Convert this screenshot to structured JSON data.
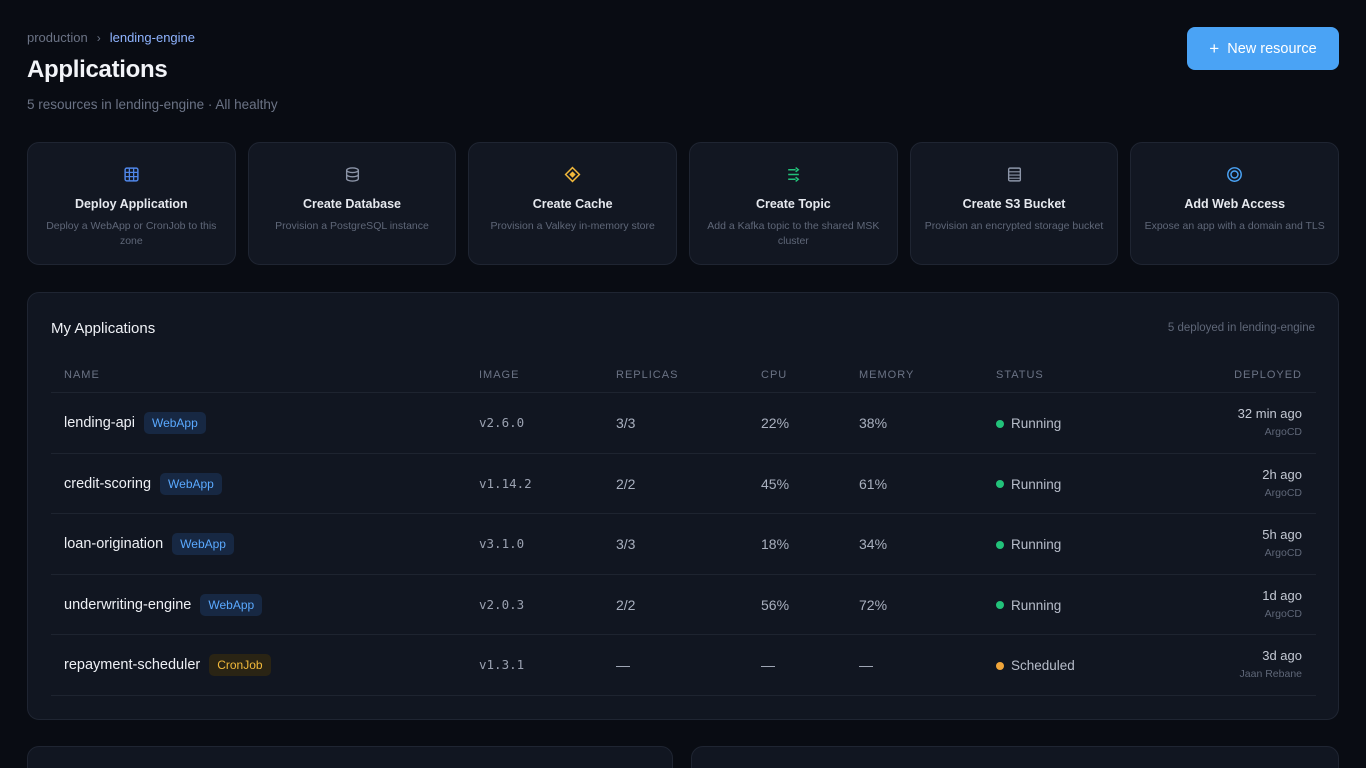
{
  "breadcrumb": {
    "root": "production",
    "separator": "›",
    "current": "lending-engine"
  },
  "page": {
    "title": "Applications",
    "subtitle": "5 resources in lending-engine · All healthy"
  },
  "new_resource": {
    "icon": "plus-icon",
    "plus": "+",
    "label": "New resource"
  },
  "actions": [
    {
      "icon": "grid-icon",
      "color": "#4f86e8",
      "title": "Deploy Application",
      "desc": "Deploy a WebApp or CronJob to this zone"
    },
    {
      "icon": "database-icon",
      "color": "#8c95a8",
      "title": "Create Database",
      "desc": "Provision a PostgreSQL instance"
    },
    {
      "icon": "diamond-icon",
      "color": "#f2b93b",
      "title": "Create Cache",
      "desc": "Provision a Valkey in-memory store"
    },
    {
      "icon": "topic-icon",
      "color": "#22c27a",
      "title": "Create Topic",
      "desc": "Add a Kafka topic to the shared MSK cluster"
    },
    {
      "icon": "bucket-icon",
      "color": "#8c95a8",
      "title": "Create S3 Bucket",
      "desc": "Provision an encrypted storage bucket"
    },
    {
      "icon": "globe-icon",
      "color": "#4aa3f5",
      "title": "Add Web Access",
      "desc": "Expose an app with a domain and TLS"
    }
  ],
  "apps_panel": {
    "title": "My Applications",
    "meta": "5 deployed in lending-engine",
    "columns": [
      "NAME",
      "IMAGE",
      "REPLICAS",
      "CPU",
      "MEMORY",
      "STATUS",
      "DEPLOYED"
    ],
    "rows": [
      {
        "name": "lending-api",
        "type": "WebApp",
        "image": "v2.6.0",
        "replicas": "3/3",
        "cpu": "22%",
        "memory": "38%",
        "status": "Running",
        "deployed": "32 min ago",
        "by": "ArgoCD"
      },
      {
        "name": "credit-scoring",
        "type": "WebApp",
        "image": "v1.14.2",
        "replicas": "2/2",
        "cpu": "45%",
        "memory": "61%",
        "status": "Running",
        "deployed": "2h ago",
        "by": "ArgoCD"
      },
      {
        "name": "loan-origination",
        "type": "WebApp",
        "image": "v3.1.0",
        "replicas": "3/3",
        "cpu": "18%",
        "memory": "34%",
        "status": "Running",
        "deployed": "5h ago",
        "by": "ArgoCD"
      },
      {
        "name": "underwriting-engine",
        "type": "WebApp",
        "image": "v2.0.3",
        "replicas": "2/2",
        "cpu": "56%",
        "memory": "72%",
        "status": "Running",
        "deployed": "1d ago",
        "by": "ArgoCD"
      },
      {
        "name": "repayment-scheduler",
        "type": "CronJob",
        "image": "v1.3.1",
        "replicas": "—",
        "cpu": "—",
        "memory": "—",
        "status": "Scheduled",
        "deployed": "3d ago",
        "by": "Jaan Rebane"
      }
    ]
  },
  "colors": {
    "accent": "#4aa3f5",
    "running": "#22c27a",
    "scheduled": "#f0a53a",
    "webapp": "#5aa9ff",
    "cronjob": "#f2b93b"
  }
}
